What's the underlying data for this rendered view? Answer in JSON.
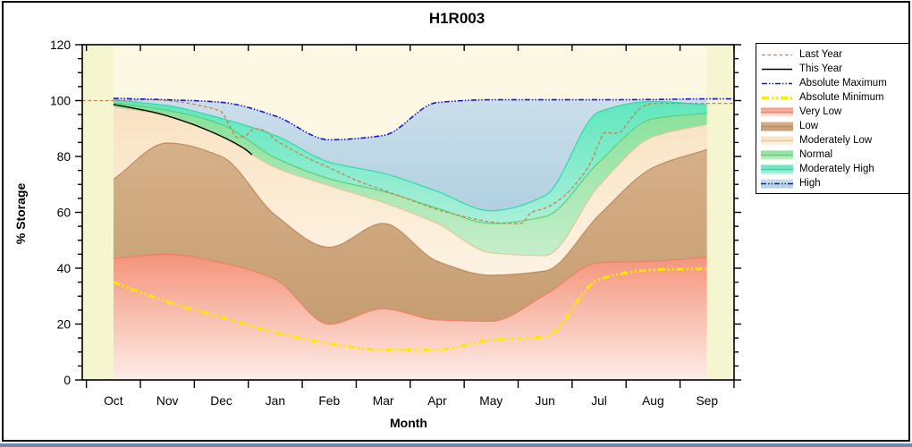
{
  "chart_data": {
    "type": "area",
    "title": "H1R003",
    "xlabel": "Month",
    "ylabel": "% Storage",
    "ylim": [
      0,
      120
    ],
    "y_major_ticks": [
      0,
      20,
      40,
      60,
      80,
      100,
      120
    ],
    "y_minor_step": 5,
    "grid": "off",
    "legend_position": "outside-right",
    "categories": [
      "Oct",
      "Nov",
      "Dec",
      "Jan",
      "Feb",
      "Mar",
      "Apr",
      "May",
      "Jun",
      "Jul",
      "Aug",
      "Sep"
    ],
    "boundaries": {
      "absolute_maximum": [
        100.8,
        100.3,
        99.4,
        94.5,
        86.0,
        87.5,
        99.3,
        100.3,
        100.3,
        100.3,
        100.4,
        100.6
      ],
      "moderately_high_top": [
        100.3,
        98.2,
        93.6,
        87.5,
        78.0,
        74.0,
        67.5,
        60.5,
        66.0,
        96.0,
        99.7,
        98.4
      ],
      "normal_top": [
        99.2,
        96.5,
        91.5,
        79.5,
        72.0,
        67.5,
        61.5,
        56.0,
        58.5,
        78.0,
        93.5,
        95.5
      ],
      "moderately_low_top": [
        97.8,
        94.5,
        87.2,
        76.0,
        69.5,
        63.5,
        56.0,
        45.5,
        44.5,
        69.5,
        87.0,
        91.5
      ],
      "low_top": [
        71.8,
        84.8,
        80.0,
        59.0,
        47.5,
        56.0,
        42.5,
        37.5,
        39.0,
        59.0,
        76.0,
        82.5
      ],
      "very_low_top": [
        43.5,
        45.0,
        42.0,
        36.0,
        20.0,
        25.5,
        21.5,
        21.0,
        30.5,
        42.0,
        42.5,
        44.0
      ],
      "absolute_minimum": [
        35.0,
        28.0,
        22.5,
        17.0,
        13.0,
        10.8,
        10.8,
        14.3,
        15.5,
        36.0,
        39.4,
        39.8
      ]
    },
    "bands": [
      {
        "name": "High",
        "top": "absolute_maximum",
        "bottom": "moderately_high_top"
      },
      {
        "name": "Moderately High",
        "top": "moderately_high_top",
        "bottom": "normal_top"
      },
      {
        "name": "Normal",
        "top": "normal_top",
        "bottom": "moderately_low_top"
      },
      {
        "name": "Moderately Low",
        "top": "moderately_low_top",
        "bottom": "low_top"
      },
      {
        "name": "Low",
        "top": "low_top",
        "bottom": "very_low_top"
      },
      {
        "name": "Very Low",
        "top": "very_low_top",
        "bottom": 0
      }
    ],
    "lines": {
      "last_year": {
        "x": [
          -0.58,
          0,
          0.7,
          1.2,
          1.7,
          2.0,
          2.15,
          2.3,
          2.45,
          2.62,
          2.8,
          3.0,
          3.3,
          3.7,
          4.0,
          4.5,
          5.0,
          5.5,
          6.0,
          6.5,
          7.0,
          7.3,
          7.55,
          7.75,
          8.0,
          8.3,
          8.6,
          8.85,
          9.0,
          9.1,
          9.35,
          9.55,
          9.75,
          9.95,
          10.2,
          11.0,
          11.5
        ],
        "values": [
          100,
          100,
          100.3,
          99.6,
          97.8,
          96,
          91,
          86.8,
          87.5,
          90,
          89.3,
          86,
          82.5,
          78.5,
          76,
          71.5,
          68,
          64.5,
          61,
          58.5,
          56.5,
          56,
          56,
          60,
          61.5,
          65,
          71,
          78,
          85,
          88.5,
          88.3,
          92.5,
          97,
          98.8,
          99,
          99,
          99
        ]
      },
      "this_year": {
        "x": [
          0,
          0.4,
          0.8,
          1.2,
          1.5,
          1.85,
          2.1,
          2.3,
          2.45,
          2.57
        ],
        "values": [
          98.6,
          97.2,
          95.6,
          93.3,
          91.3,
          88.5,
          86.3,
          84.3,
          82.5,
          80.6
        ]
      }
    },
    "colors": {
      "plot_background": "#fcf8e3",
      "no_data_strip": "#f5f5d0",
      "frame": "#000000"
    }
  },
  "legend": {
    "items": [
      {
        "label": "Last Year",
        "type": "line",
        "color": "#c5854f",
        "dash": "4 2.5",
        "width": 1.3
      },
      {
        "label": "This Year",
        "type": "line",
        "color": "#000000",
        "dash": "",
        "width": 1.4
      },
      {
        "label": "Absolute Maximum",
        "type": "line",
        "color": "#1717d6",
        "dash": "6 2 1.5 2 1.5 2",
        "width": 1.6
      },
      {
        "label": "Absolute Minimum",
        "type": "line",
        "color": "#ffe800",
        "dash": "8 3 2 3 2 3",
        "width": 3
      },
      {
        "label": "Very Low",
        "type": "band",
        "fill_top": "#f4937a",
        "fill_bottom": "#fdece7",
        "edge": "#ee8060"
      },
      {
        "label": "Low",
        "type": "band",
        "fill_top": "#d6b089",
        "fill_bottom": "#c79e73",
        "edge": "#c08b5c"
      },
      {
        "label": "Moderately Low",
        "type": "band",
        "fill_top": "#f9e2c2",
        "fill_bottom": "#fdf3e3",
        "edge": "#e7c698"
      },
      {
        "label": "Normal",
        "type": "band",
        "fill_top": "#86e097",
        "fill_bottom": "#c6eecb",
        "edge": "#5ecf73"
      },
      {
        "label": "Moderately High",
        "type": "band",
        "fill_top": "#5fe6bd",
        "fill_bottom": "#aaf0d9",
        "edge": "#2fd9ab"
      },
      {
        "label": "High",
        "type": "band",
        "fill_top": "#ccdeea",
        "fill_bottom": "#b0d1e1",
        "edge": "",
        "line": {
          "color": "#1717d6",
          "dash": "6 2 1.5 2 1.5 2",
          "width": 1.4
        }
      }
    ]
  }
}
